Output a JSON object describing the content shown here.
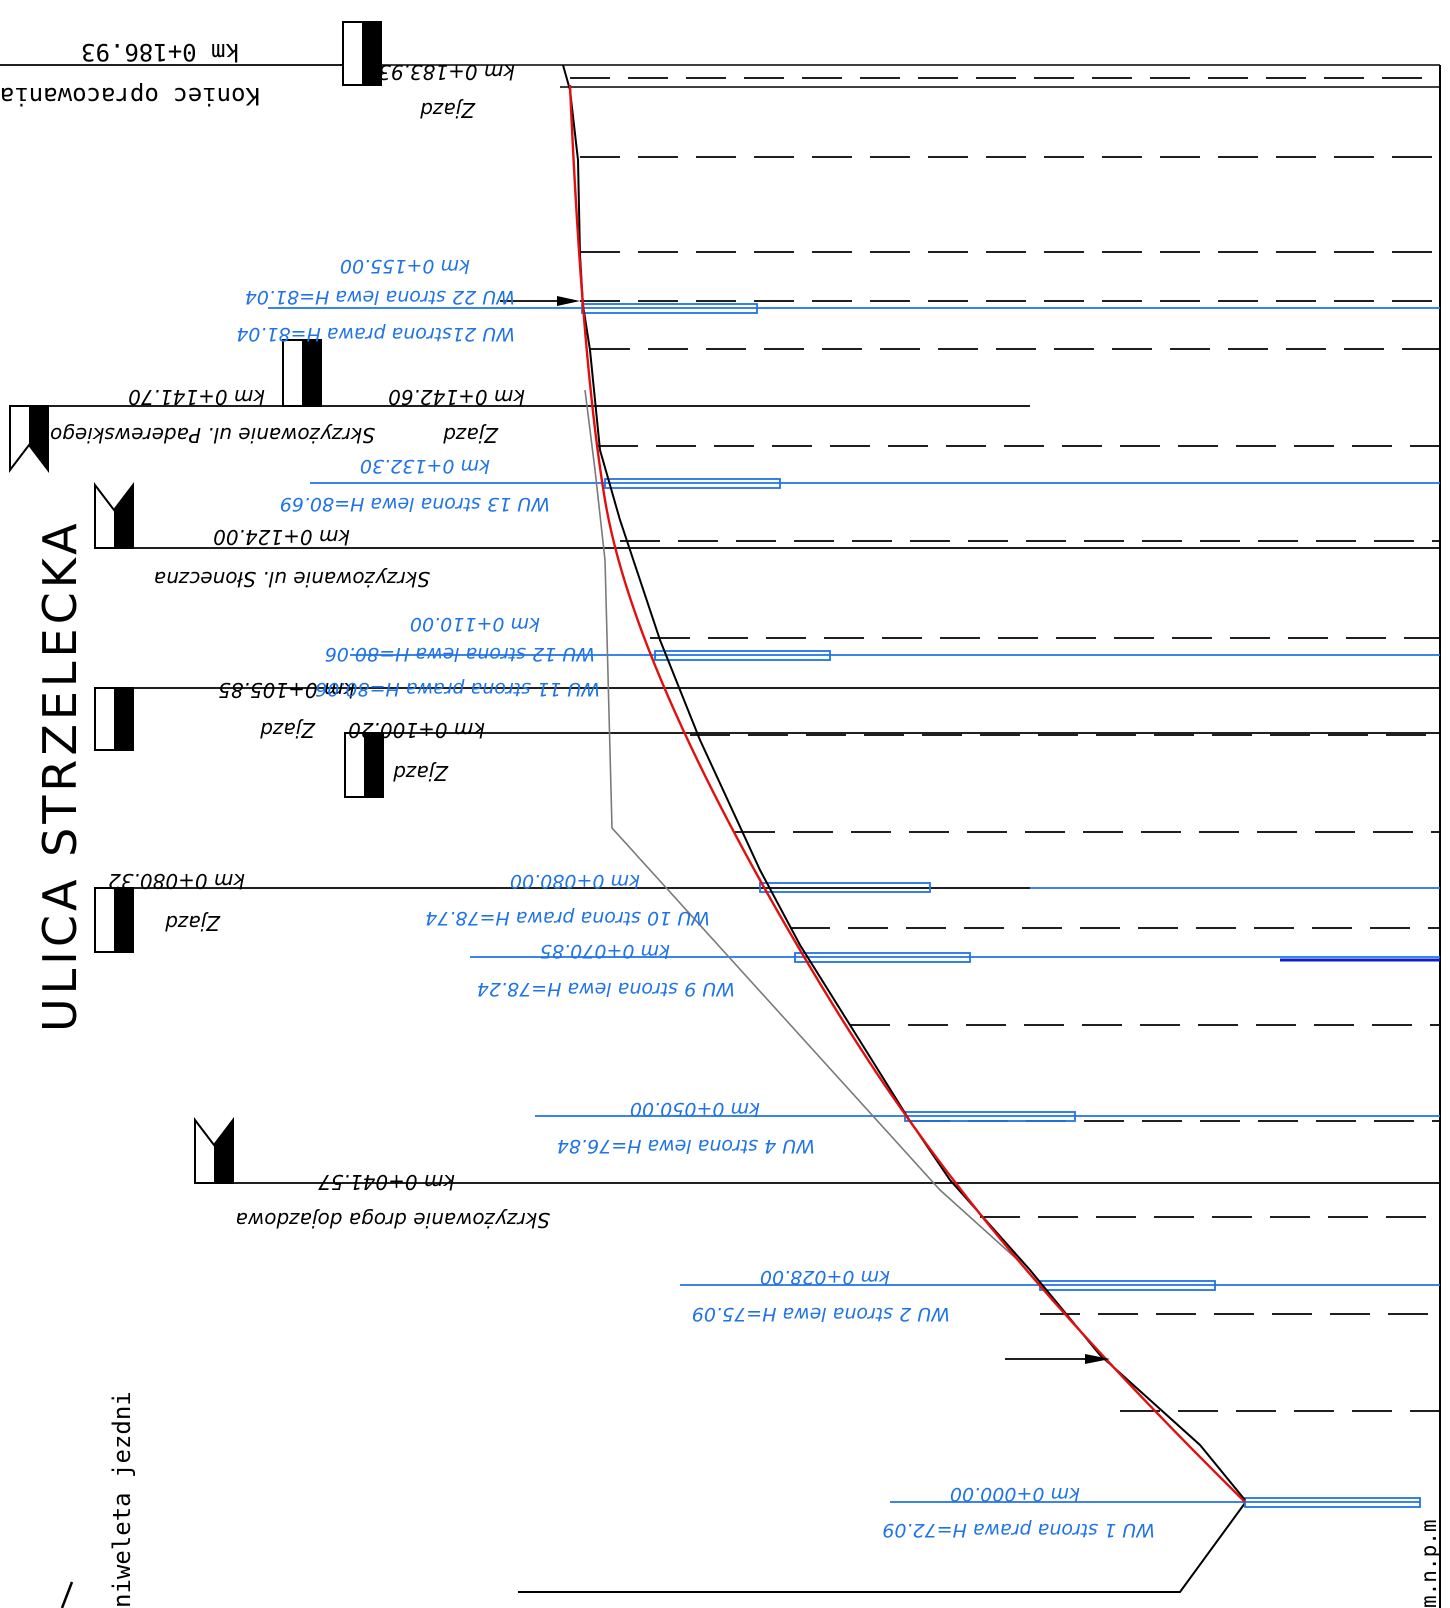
{
  "street_name": "ULICA STRZELECKA",
  "grade_line_label": "niweleta jezdni",
  "elevation_unit_label": "m.n.p.m",
  "end_of_study": {
    "label": "Koniec opracowania",
    "km": "km 0+186.93"
  },
  "labels": {
    "km_183_93": "km 0+183.93",
    "zjazd": "Zjazd",
    "km_155": "km 0+155.00",
    "wu22": "WU 22 strona lewa H=81.04",
    "wu21": "WU 21strona prawa H=81.04",
    "km_141_70": "km 0+141.70",
    "km_142_60": "km 0+142.60",
    "paderewskiego": "Skrzyżowanie ul. Paderewskiego",
    "km_132_30": "km 0+132.30",
    "wu13": "WU 13 strona lewa H=80.69",
    "km_124": "km 0+124.00",
    "sloneczna": "Skrzyżowanie ul. Słoneczna",
    "km_110": "km 0+110.00",
    "wu12": "WU 12 strona lewa H=80.06",
    "km_105_85": "km 0+105.85",
    "wu11": "WU 11 strona prawa H=80.06",
    "km_100_20": "km 0+100.20",
    "km_080_32": "km 0+080.32",
    "km_080": "km 0+080.00",
    "wu10": "WU 10 strona prawa H=78.74",
    "km_070_85": "km 0+070.85",
    "wu9": "WU 9 strona lewa H=78.24",
    "km_050": "km 0+050.00",
    "wu4": "WU 4 strona lewa H=76.84",
    "km_041_57": "km 0+041.57",
    "droga_dojazdowa": "Skrzyżowanie droga dojazdowa",
    "km_028": "km 0+028.00",
    "wu2": "WU 2 strona lewa H=75.09",
    "km_000": "km 0+000.00",
    "wu1": "WU 1 strona prawa H=72.09"
  },
  "colors": {
    "red_grade": "#e01010",
    "blue_inlet": "#1e73e8",
    "dark_blue": "#0a1fd0",
    "black": "#000000",
    "grey": "#7a7a7a"
  }
}
